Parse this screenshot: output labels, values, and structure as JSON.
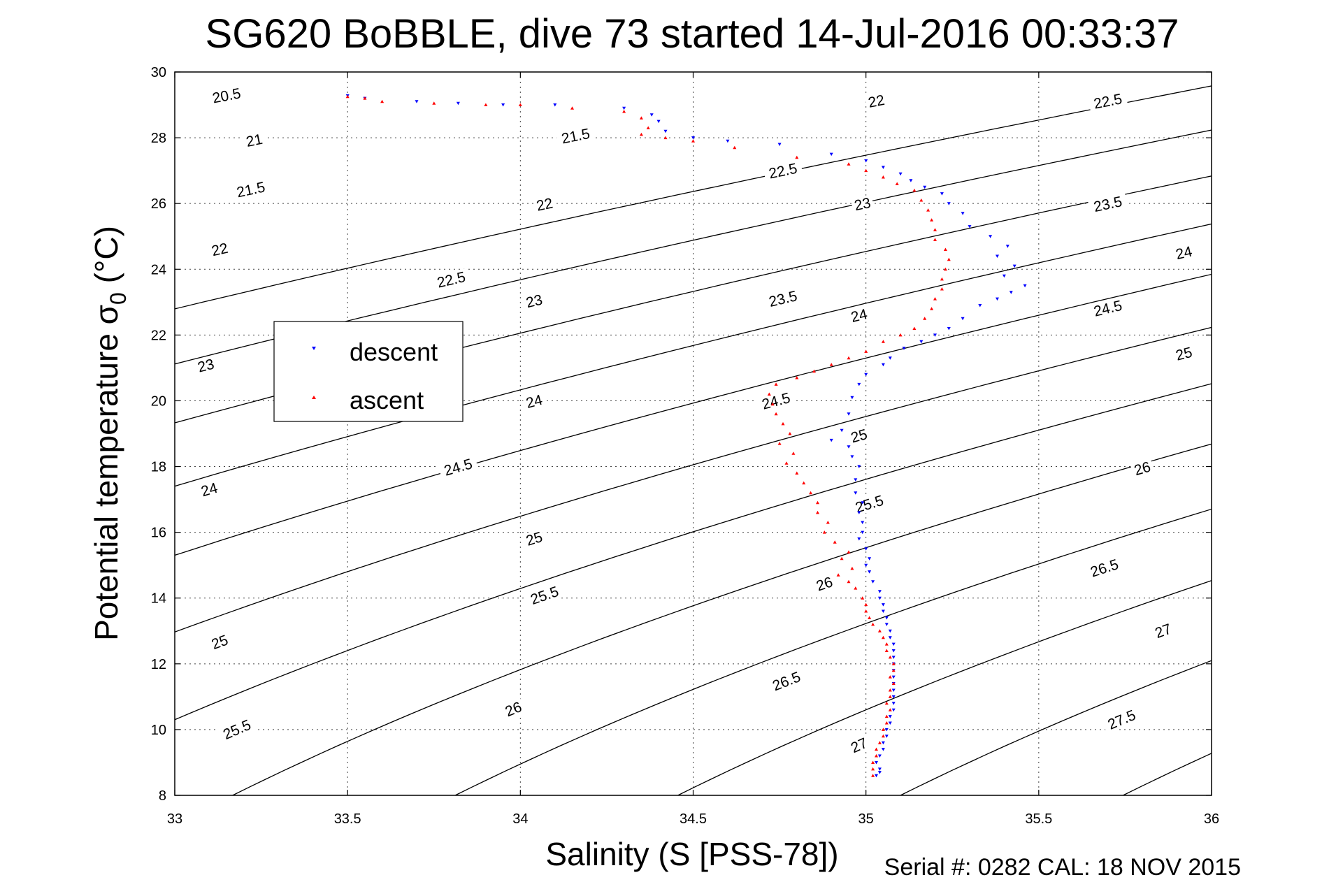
{
  "chart_data": {
    "type": "scatter",
    "title": "SG620 BoBBLE, dive 73 started 14-Jul-2016 00:33:37",
    "xlabel": "Salinity (S [PSS-78])",
    "ylabel_main": "Potential temperature σ",
    "ylabel_sub": "0",
    "ylabel_unit": " (°C)",
    "xlim": [
      33,
      36
    ],
    "ylim": [
      8,
      30
    ],
    "x_ticks": [
      33,
      33.5,
      34,
      34.5,
      35,
      35.5,
      36
    ],
    "x_tick_labels": [
      "33",
      "33.5",
      "34",
      "34.5",
      "35",
      "35.5",
      "36"
    ],
    "y_ticks": [
      8,
      10,
      12,
      14,
      16,
      18,
      20,
      22,
      24,
      26,
      28,
      30
    ],
    "y_tick_labels": [
      "8",
      "10",
      "12",
      "14",
      "16",
      "18",
      "20",
      "22",
      "24",
      "26",
      "28",
      "30"
    ],
    "grid": true,
    "legend_position": "middle-left",
    "footer": "Serial #: 0282  CAL: 18 NOV 2015",
    "density_contours": {
      "levels": [
        20.5,
        21,
        21.5,
        22,
        22.5,
        23,
        23.5,
        24,
        24.5,
        25,
        25.5,
        26,
        26.5,
        27,
        27.5
      ],
      "labels": [
        {
          "text": "20.5",
          "s": 33.15,
          "t": 29.28
        },
        {
          "text": "21",
          "s": 33.23,
          "t": 27.92
        },
        {
          "text": "21.5",
          "s": 33.22,
          "t": 26.42
        },
        {
          "text": "22",
          "s": 33.13,
          "t": 24.6
        },
        {
          "text": "23",
          "s": 33.09,
          "t": 21.07
        },
        {
          "text": "24",
          "s": 33.1,
          "t": 17.3
        },
        {
          "text": "25",
          "s": 33.13,
          "t": 12.66
        },
        {
          "text": "25.5",
          "s": 33.18,
          "t": 10.0
        },
        {
          "text": "21.5",
          "s": 34.16,
          "t": 28.05
        },
        {
          "text": "22",
          "s": 34.07,
          "t": 25.97
        },
        {
          "text": "22.5",
          "s": 33.8,
          "t": 23.68
        },
        {
          "text": "23",
          "s": 34.04,
          "t": 23.03
        },
        {
          "text": "24",
          "s": 34.04,
          "t": 19.98
        },
        {
          "text": "24.5",
          "s": 33.82,
          "t": 17.98
        },
        {
          "text": "25",
          "s": 34.04,
          "t": 15.8
        },
        {
          "text": "25.5",
          "s": 34.07,
          "t": 14.08
        },
        {
          "text": "26",
          "s": 33.98,
          "t": 10.62
        },
        {
          "text": "22.5",
          "s": 34.76,
          "t": 26.99
        },
        {
          "text": "23.5",
          "s": 34.76,
          "t": 23.1
        },
        {
          "text": "24.5",
          "s": 34.74,
          "t": 19.99
        },
        {
          "text": "25.5",
          "s": 35.01,
          "t": 16.86
        },
        {
          "text": "26",
          "s": 34.88,
          "t": 14.43
        },
        {
          "text": "26.5",
          "s": 34.77,
          "t": 11.47
        },
        {
          "text": "27",
          "s": 34.98,
          "t": 9.52
        },
        {
          "text": "22",
          "s": 35.03,
          "t": 29.11
        },
        {
          "text": "23",
          "s": 34.99,
          "t": 25.98
        },
        {
          "text": "24",
          "s": 34.98,
          "t": 22.59
        },
        {
          "text": "25",
          "s": 34.98,
          "t": 18.93
        },
        {
          "text": "22.5",
          "s": 35.7,
          "t": 29.11
        },
        {
          "text": "23.5",
          "s": 35.7,
          "t": 25.98
        },
        {
          "text": "24.5",
          "s": 35.7,
          "t": 22.81
        },
        {
          "text": "26",
          "s": 35.8,
          "t": 17.94
        },
        {
          "text": "26.5",
          "s": 35.69,
          "t": 14.91
        },
        {
          "text": "27",
          "s": 35.86,
          "t": 13.0
        },
        {
          "text": "27.5",
          "s": 35.74,
          "t": 10.3
        },
        {
          "text": "24",
          "s": 35.92,
          "t": 24.5
        },
        {
          "text": "25",
          "s": 35.92,
          "t": 21.43
        }
      ]
    },
    "series": [
      {
        "name": "descent",
        "color": "#0000ff",
        "marker": "triangle-down",
        "points": [
          [
            35.03,
            8.6
          ],
          [
            35.04,
            8.7
          ],
          [
            35.04,
            8.8
          ],
          [
            35.03,
            9.0
          ],
          [
            35.04,
            9.2
          ],
          [
            35.05,
            9.4
          ],
          [
            35.05,
            9.6
          ],
          [
            35.06,
            9.8
          ],
          [
            35.06,
            10.0
          ],
          [
            35.07,
            10.2
          ],
          [
            35.07,
            10.4
          ],
          [
            35.08,
            10.6
          ],
          [
            35.08,
            10.8
          ],
          [
            35.08,
            11.0
          ],
          [
            35.08,
            11.2
          ],
          [
            35.08,
            11.4
          ],
          [
            35.08,
            11.6
          ],
          [
            35.08,
            11.8
          ],
          [
            35.08,
            12.0
          ],
          [
            35.08,
            12.2
          ],
          [
            35.08,
            12.4
          ],
          [
            35.08,
            12.6
          ],
          [
            35.07,
            12.8
          ],
          [
            35.07,
            13.0
          ],
          [
            35.06,
            13.2
          ],
          [
            35.06,
            13.4
          ],
          [
            35.05,
            13.6
          ],
          [
            35.05,
            13.8
          ],
          [
            35.04,
            14.0
          ],
          [
            35.04,
            14.2
          ],
          [
            35.02,
            14.5
          ],
          [
            35.01,
            14.8
          ],
          [
            35.0,
            15.0
          ],
          [
            35.01,
            15.2
          ],
          [
            35.0,
            15.5
          ],
          [
            34.98,
            15.8
          ],
          [
            34.99,
            16.0
          ],
          [
            34.99,
            16.3
          ],
          [
            34.98,
            16.6
          ],
          [
            34.99,
            16.9
          ],
          [
            34.97,
            17.2
          ],
          [
            34.97,
            17.6
          ],
          [
            34.98,
            18.0
          ],
          [
            34.96,
            18.3
          ],
          [
            34.95,
            18.6
          ],
          [
            34.9,
            18.8
          ],
          [
            34.93,
            19.1
          ],
          [
            34.95,
            19.6
          ],
          [
            34.96,
            20.1
          ],
          [
            34.98,
            20.5
          ],
          [
            35.0,
            20.8
          ],
          [
            35.05,
            21.1
          ],
          [
            35.07,
            21.3
          ],
          [
            35.11,
            21.6
          ],
          [
            35.16,
            21.8
          ],
          [
            35.2,
            22.0
          ],
          [
            35.24,
            22.2
          ],
          [
            35.28,
            22.5
          ],
          [
            35.33,
            22.9
          ],
          [
            35.38,
            23.1
          ],
          [
            35.42,
            23.3
          ],
          [
            35.46,
            23.5
          ],
          [
            35.4,
            23.8
          ],
          [
            35.43,
            24.1
          ],
          [
            35.38,
            24.4
          ],
          [
            35.41,
            24.7
          ],
          [
            35.36,
            25.0
          ],
          [
            35.3,
            25.3
          ],
          [
            35.28,
            25.7
          ],
          [
            35.24,
            26.0
          ],
          [
            35.22,
            26.3
          ],
          [
            35.17,
            26.5
          ],
          [
            35.13,
            26.7
          ],
          [
            35.1,
            26.9
          ],
          [
            35.05,
            27.1
          ],
          [
            35.0,
            27.3
          ],
          [
            34.9,
            27.5
          ],
          [
            34.75,
            27.8
          ],
          [
            34.6,
            27.9
          ],
          [
            34.5,
            28.0
          ],
          [
            34.42,
            28.2
          ],
          [
            34.4,
            28.5
          ],
          [
            34.38,
            28.7
          ],
          [
            34.3,
            28.9
          ],
          [
            34.1,
            29.0
          ],
          [
            33.95,
            29.0
          ],
          [
            33.82,
            29.05
          ],
          [
            33.7,
            29.1
          ],
          [
            33.55,
            29.2
          ],
          [
            33.5,
            29.28
          ]
        ]
      },
      {
        "name": "ascent",
        "color": "#ff0000",
        "marker": "triangle-up",
        "points": [
          [
            35.02,
            8.6
          ],
          [
            35.02,
            8.8
          ],
          [
            35.02,
            9.0
          ],
          [
            35.03,
            9.2
          ],
          [
            35.03,
            9.4
          ],
          [
            35.04,
            9.6
          ],
          [
            35.05,
            9.8
          ],
          [
            35.05,
            10.0
          ],
          [
            35.06,
            10.2
          ],
          [
            35.06,
            10.4
          ],
          [
            35.07,
            10.6
          ],
          [
            35.06,
            10.8
          ],
          [
            35.07,
            11.0
          ],
          [
            35.07,
            11.2
          ],
          [
            35.08,
            11.4
          ],
          [
            35.07,
            11.6
          ],
          [
            35.08,
            11.8
          ],
          [
            35.08,
            12.0
          ],
          [
            35.07,
            12.2
          ],
          [
            35.06,
            12.4
          ],
          [
            35.06,
            12.6
          ],
          [
            35.05,
            12.8
          ],
          [
            35.04,
            13.0
          ],
          [
            35.02,
            13.2
          ],
          [
            35.01,
            13.4
          ],
          [
            35.0,
            13.6
          ],
          [
            35.0,
            13.8
          ],
          [
            34.99,
            14.0
          ],
          [
            34.97,
            14.3
          ],
          [
            34.95,
            14.5
          ],
          [
            34.92,
            14.7
          ],
          [
            34.96,
            14.9
          ],
          [
            34.93,
            15.2
          ],
          [
            34.95,
            15.4
          ],
          [
            34.91,
            15.7
          ],
          [
            34.88,
            16.0
          ],
          [
            34.89,
            16.3
          ],
          [
            34.86,
            16.6
          ],
          [
            34.86,
            16.9
          ],
          [
            34.84,
            17.2
          ],
          [
            34.82,
            17.5
          ],
          [
            34.8,
            17.8
          ],
          [
            34.77,
            18.1
          ],
          [
            34.79,
            18.4
          ],
          [
            34.75,
            18.7
          ],
          [
            34.78,
            19.0
          ],
          [
            34.76,
            19.3
          ],
          [
            34.74,
            19.6
          ],
          [
            34.73,
            19.9
          ],
          [
            34.72,
            20.2
          ],
          [
            34.74,
            20.5
          ],
          [
            34.8,
            20.7
          ],
          [
            34.85,
            20.9
          ],
          [
            34.9,
            21.1
          ],
          [
            34.95,
            21.3
          ],
          [
            35.0,
            21.5
          ],
          [
            35.05,
            21.8
          ],
          [
            35.1,
            22.0
          ],
          [
            35.14,
            22.2
          ],
          [
            35.17,
            22.5
          ],
          [
            35.19,
            22.8
          ],
          [
            35.2,
            23.1
          ],
          [
            35.22,
            23.4
          ],
          [
            35.22,
            23.7
          ],
          [
            35.23,
            24.0
          ],
          [
            35.24,
            24.3
          ],
          [
            35.23,
            24.6
          ],
          [
            35.2,
            24.9
          ],
          [
            35.2,
            25.2
          ],
          [
            35.19,
            25.5
          ],
          [
            35.18,
            25.8
          ],
          [
            35.16,
            26.1
          ],
          [
            35.14,
            26.4
          ],
          [
            35.09,
            26.6
          ],
          [
            35.05,
            26.8
          ],
          [
            35.0,
            27.0
          ],
          [
            34.95,
            27.2
          ],
          [
            34.8,
            27.4
          ],
          [
            34.62,
            27.7
          ],
          [
            34.5,
            27.9
          ],
          [
            34.42,
            28.0
          ],
          [
            34.35,
            28.1
          ],
          [
            34.37,
            28.3
          ],
          [
            34.35,
            28.6
          ],
          [
            34.3,
            28.8
          ],
          [
            34.15,
            28.9
          ],
          [
            34.0,
            29.0
          ],
          [
            33.9,
            29.0
          ],
          [
            33.75,
            29.05
          ],
          [
            33.6,
            29.1
          ],
          [
            33.55,
            29.2
          ],
          [
            33.5,
            29.25
          ]
        ]
      }
    ]
  }
}
